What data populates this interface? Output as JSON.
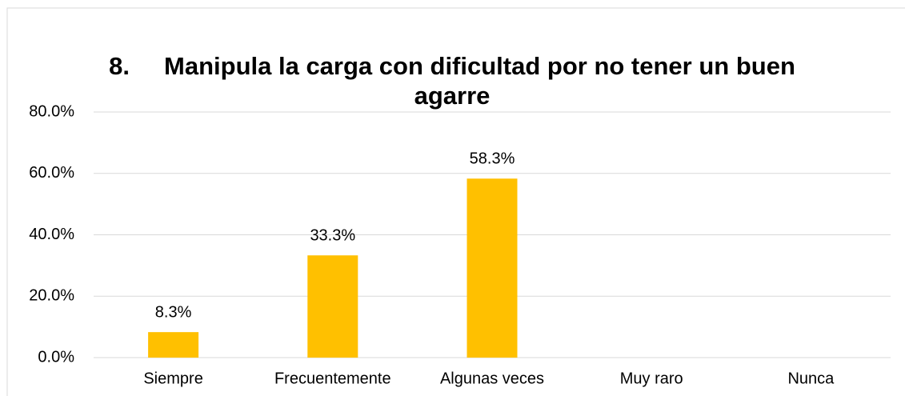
{
  "chart_data": {
    "type": "bar",
    "title": "8.     Manipula la carga con dificultad por no tener un buen agarre",
    "categories": [
      "Siempre",
      "Frecuentemente",
      "Algunas veces",
      "Muy raro",
      "Nunca"
    ],
    "values": [
      8.3,
      33.3,
      58.3,
      0,
      0
    ],
    "value_labels": [
      "8.3%",
      "33.3%",
      "58.3%",
      null,
      null
    ],
    "color": "#ffc000",
    "ylim": [
      0,
      80
    ],
    "yticks": [
      {
        "value": 0,
        "label": "0.0%"
      },
      {
        "value": 20,
        "label": "20.0%"
      },
      {
        "value": 40,
        "label": "40.0%"
      },
      {
        "value": 60,
        "label": "60.0%"
      },
      {
        "value": 80,
        "label": "80.0%"
      }
    ],
    "grid": true
  }
}
